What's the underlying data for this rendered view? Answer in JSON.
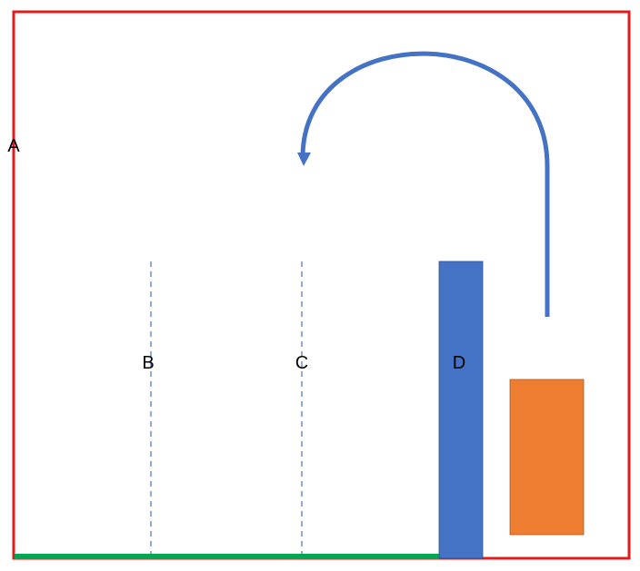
{
  "labels": {
    "a": "A",
    "b": "B",
    "c": "C",
    "d": "D"
  },
  "colors": {
    "frame": "#e31b1b",
    "floor": "#00a651",
    "dashed_line": "#4472c4",
    "blue_bar": "#4472c4",
    "orange_block": "#ed7d31",
    "arrow": "#4472c4",
    "text": "#000000"
  },
  "shapes": {
    "arrow": "curved-arrow-icon",
    "blue_bar": "vertical-bar",
    "orange_block": "rectangle"
  }
}
